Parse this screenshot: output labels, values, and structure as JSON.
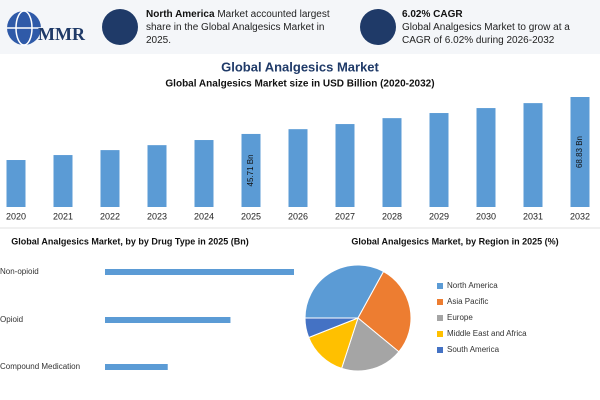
{
  "header": {
    "logo": "MMR",
    "info": [
      {
        "bold": "North America",
        "text": "Market accounted largest share in the Global Analgesics Market in 2025."
      },
      {
        "bold": "6.02% CAGR",
        "text": "Global Analgesics Market to grow at a CAGR of 6.02% during 2026-2032"
      }
    ]
  },
  "title": "Global Analgesics Market",
  "chart_data": [
    {
      "type": "bar",
      "title": "Global Analgesics Market size in USD Billion (2020-2032)",
      "categories": [
        "2020",
        "2021",
        "2022",
        "2023",
        "2024",
        "2025",
        "2026",
        "2027",
        "2028",
        "2029",
        "2030",
        "2031",
        "2032"
      ],
      "values": [
        29.4,
        32.5,
        35.6,
        38.7,
        41.9,
        45.71,
        48.7,
        51.9,
        55.6,
        58.8,
        61.9,
        65.0,
        68.83
      ],
      "value_labels": [
        null,
        null,
        null,
        null,
        null,
        "45.71 Bn",
        null,
        null,
        null,
        null,
        null,
        null,
        "68.83 Bn"
      ],
      "color": "#5b9bd5"
    },
    {
      "type": "hbar",
      "title": "Global Analgesics Market, by by Drug Type in 2025 (Bn)",
      "categories": [
        "Non-opioid",
        "Opioid",
        "Compound Medication"
      ],
      "values": [
        22.9,
        15.2,
        7.6
      ],
      "color": "#5b9bd5"
    },
    {
      "type": "pie",
      "title": "Global Analgesics Market, by Region in 2025 (%)",
      "categories": [
        "North America",
        "Asia Pacific",
        "Europe",
        "Middle East and Africa",
        "South America"
      ],
      "values": [
        33,
        28,
        19,
        14,
        6
      ],
      "colors": [
        "#5b9bd5",
        "#ed7d31",
        "#a5a5a5",
        "#ffc000",
        "#4472c4"
      ],
      "legend": "right"
    }
  ]
}
